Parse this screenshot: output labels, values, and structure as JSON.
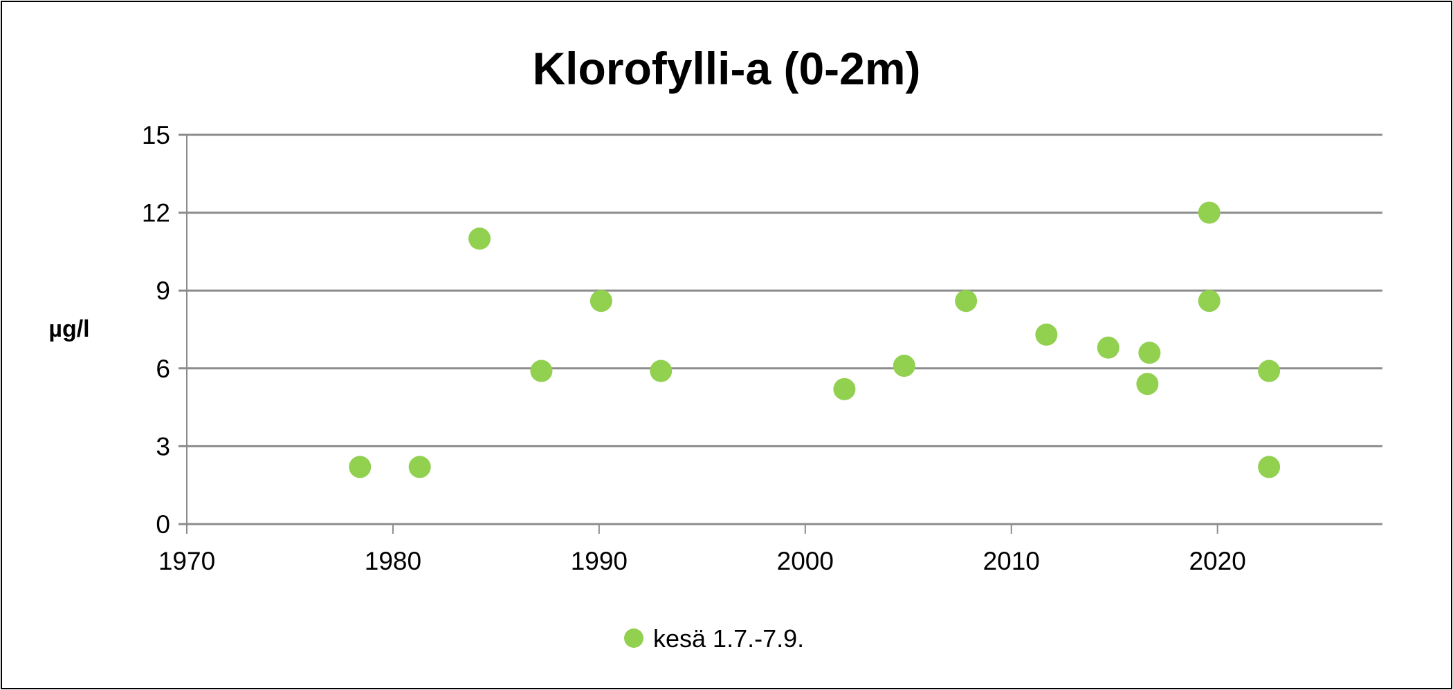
{
  "chart_data": {
    "type": "scatter",
    "title": "Klorofylli-a (0-2m)",
    "xlabel": "",
    "ylabel": "µg/l",
    "xlim": [
      1970,
      2028
    ],
    "ylim": [
      0,
      15
    ],
    "xticks": [
      1970,
      1980,
      1990,
      2000,
      2010,
      2020
    ],
    "yticks": [
      0,
      3,
      6,
      9,
      12,
      15
    ],
    "grid": "horizontal",
    "legend_position": "bottom-center",
    "series": [
      {
        "name": "kesä 1.7.-7.9.",
        "color": "#92d050",
        "points": [
          {
            "x": 1978.4,
            "y": 2.2
          },
          {
            "x": 1981.3,
            "y": 2.2
          },
          {
            "x": 1984.2,
            "y": 11.0
          },
          {
            "x": 1987.2,
            "y": 5.9
          },
          {
            "x": 1990.1,
            "y": 8.6
          },
          {
            "x": 1993.0,
            "y": 5.9
          },
          {
            "x": 2001.9,
            "y": 5.2
          },
          {
            "x": 2004.8,
            "y": 6.1
          },
          {
            "x": 2007.8,
            "y": 8.6
          },
          {
            "x": 2011.7,
            "y": 7.3
          },
          {
            "x": 2014.7,
            "y": 6.8
          },
          {
            "x": 2016.6,
            "y": 5.4
          },
          {
            "x": 2016.7,
            "y": 6.6
          },
          {
            "x": 2019.6,
            "y": 12.0
          },
          {
            "x": 2019.6,
            "y": 8.6
          },
          {
            "x": 2022.5,
            "y": 5.9
          },
          {
            "x": 2022.5,
            "y": 2.2
          }
        ]
      }
    ]
  }
}
